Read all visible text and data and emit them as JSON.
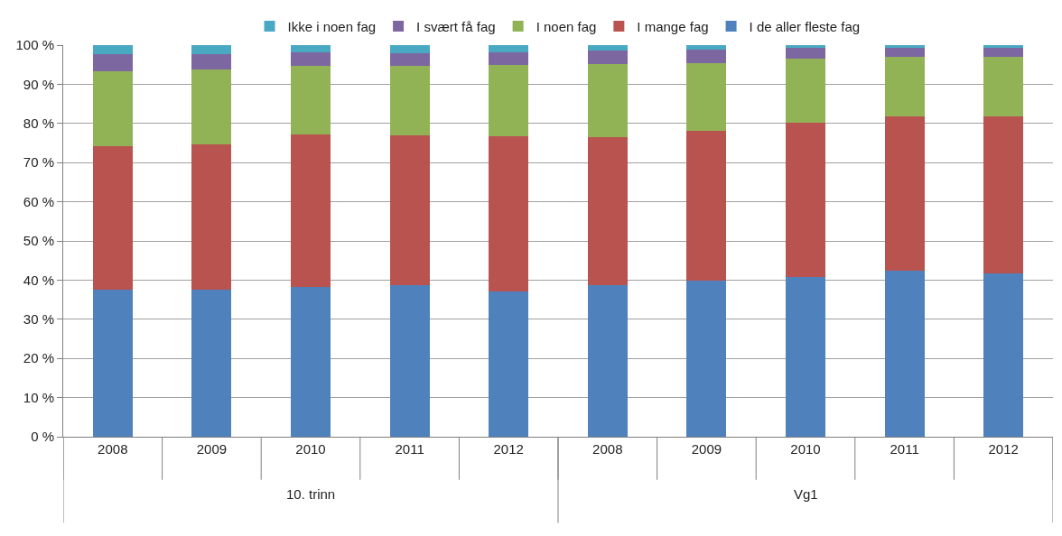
{
  "chart_data": {
    "type": "bar",
    "stacked": true,
    "categories": [
      "2008",
      "2009",
      "2010",
      "2011",
      "2012",
      "2008",
      "2009",
      "2010",
      "2011",
      "2012"
    ],
    "series": [
      {
        "name": "I de aller fleste fag",
        "color": "#4f81bd",
        "values": [
          37.5,
          37.5,
          38.3,
          38.6,
          37.2,
          38.7,
          39.8,
          40.8,
          42.4,
          41.8
        ]
      },
      {
        "name": "I mange fag",
        "color": "#b9534f",
        "values": [
          36.6,
          37.1,
          39.0,
          38.4,
          39.6,
          37.7,
          38.3,
          39.5,
          39.5,
          40.0
        ]
      },
      {
        "name": "I noen fag",
        "color": "#91b356",
        "values": [
          19.3,
          19.2,
          17.4,
          17.7,
          18.2,
          18.8,
          17.4,
          16.3,
          15.1,
          15.2
        ]
      },
      {
        "name": "I svært få fag",
        "color": "#7d67a0",
        "values": [
          4.4,
          4.0,
          3.5,
          3.2,
          3.2,
          3.5,
          3.3,
          2.7,
          2.4,
          2.4
        ]
      },
      {
        "name": "Ikke i noen fag",
        "color": "#4aa9c2",
        "values": [
          2.2,
          2.2,
          1.8,
          2.1,
          1.8,
          1.3,
          1.2,
          0.7,
          0.6,
          0.6
        ]
      }
    ],
    "ylim": [
      0,
      100
    ],
    "yticks": [
      {
        "value": 0,
        "label": "0 %"
      },
      {
        "value": 10,
        "label": "10 %"
      },
      {
        "value": 20,
        "label": "20 %"
      },
      {
        "value": 30,
        "label": "30 %"
      },
      {
        "value": 40,
        "label": "40 %"
      },
      {
        "value": 50,
        "label": "50 %"
      },
      {
        "value": 60,
        "label": "60 %"
      },
      {
        "value": 70,
        "label": "70 %"
      },
      {
        "value": 80,
        "label": "80 %"
      },
      {
        "value": 90,
        "label": "90 %"
      },
      {
        "value": 100,
        "label": "100 %"
      }
    ],
    "grid": "y",
    "legend": "top",
    "annotations": [
      "10. trinn",
      "Vg1"
    ]
  }
}
